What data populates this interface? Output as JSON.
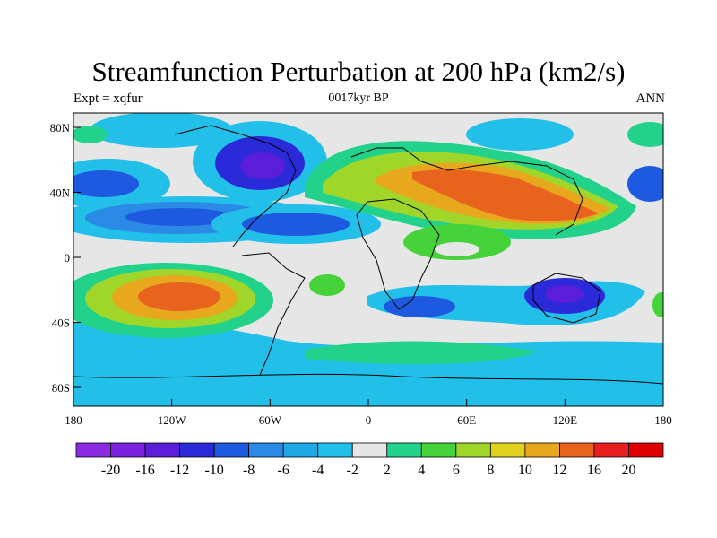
{
  "title": "Streamfunction Perturbation at 200 hPa (km2/s)",
  "subtitle": "0017kyr BP",
  "left_label": "Expt = xqfur",
  "right_label": "ANN",
  "map": {
    "lat_ticks": [
      "80N",
      "40N",
      "0",
      "40S",
      "80S"
    ],
    "lon_ticks": [
      "180",
      "120W",
      "60W",
      "0",
      "60E",
      "120E",
      "180"
    ]
  },
  "colorbar": {
    "labels": [
      "-20",
      "-16",
      "-12",
      "-10",
      "-8",
      "-6",
      "-4",
      "-2",
      "2",
      "4",
      "6",
      "8",
      "10",
      "12",
      "16",
      "20"
    ],
    "colors": [
      "#8a2be2",
      "#7a22e0",
      "#5a1ed8",
      "#2a2ad8",
      "#1e5ae0",
      "#2a8ae6",
      "#1ea8e6",
      "#22bfe8",
      "#e6e6e6",
      "#22d28a",
      "#46d23a",
      "#a0d62a",
      "#e0d21e",
      "#e8a81e",
      "#e8641e",
      "#e61e1e",
      "#e00000"
    ]
  }
}
